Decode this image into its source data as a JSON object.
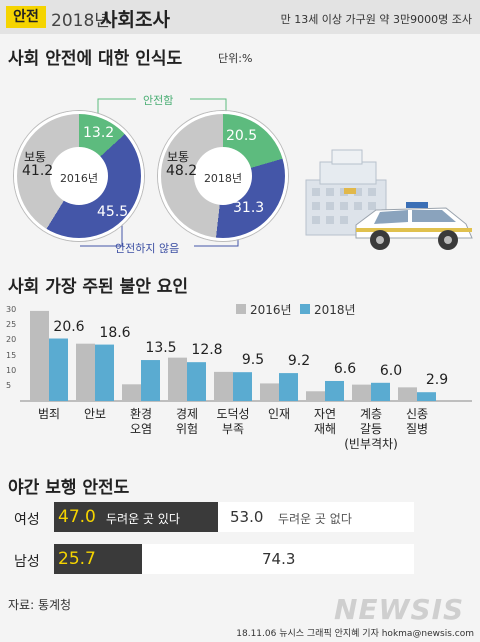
{
  "header": {
    "tag": "안전",
    "year": "2018년",
    "title": "사회조사",
    "note": "만 13세 이상 가구원 약 3만9000명 조사"
  },
  "perception": {
    "title": "사회 안전에 대한 인식도",
    "unit": "단위:%",
    "label_safe": "안전함",
    "label_unsafe": "안전하지 않음",
    "pies": [
      {
        "year": "2016년",
        "normal_label": "보통",
        "normal": "41.2",
        "safe": "13.2",
        "unsafe": "45.5"
      },
      {
        "year": "2018년",
        "normal_label": "보통",
        "normal": "48.2",
        "safe": "20.5",
        "unsafe": "31.3"
      }
    ]
  },
  "anxiety": {
    "title": "사회 가장 주된 불안 요인",
    "legend": [
      "2016년",
      "2018년"
    ],
    "ticks": [
      "30",
      "25",
      "20",
      "15",
      "10",
      "5"
    ]
  },
  "night_walk": {
    "title": "야간 보행 안전도",
    "female": {
      "label": "여성",
      "unsafe": "47.0",
      "unsafe_text": "두려운 곳 있다",
      "safe": "53.0",
      "safe_text": "두려운 곳 없다"
    },
    "male": {
      "label": "남성",
      "unsafe": "25.7",
      "safe": "74.3"
    }
  },
  "source": "자료: 통계청",
  "credit": "18.11.06 뉴시스 그래픽 안지혜 기자 hokma@newsis.com",
  "logo": "NEWSIS",
  "colors": {
    "safe": "#5dbb7e",
    "unsafe": "#4456a8",
    "normal": "#c8c8c8",
    "y2016": "#bdbdbd",
    "y2018": "#5aabd1",
    "accent": "#f5d400"
  },
  "chart_data": [
    {
      "type": "pie",
      "title": "2016년",
      "categories": [
        "안전함",
        "안전하지 않음",
        "보통"
      ],
      "values": [
        13.2,
        45.5,
        41.2
      ]
    },
    {
      "type": "pie",
      "title": "2018년",
      "categories": [
        "안전함",
        "안전하지 않음",
        "보통"
      ],
      "values": [
        20.5,
        31.3,
        48.2
      ]
    },
    {
      "type": "bar",
      "title": "사회 가장 주된 불안 요인",
      "categories": [
        "범죄",
        "안보",
        "환경\n오염",
        "경제\n위험",
        "도덕성\n부족",
        "인재",
        "자연\n재해",
        "계층\n갈등\n(빈부격차)",
        "신종\n질병"
      ],
      "series": [
        {
          "name": "2016년",
          "values": [
            29.7,
            18.9,
            5.5,
            14.3,
            9.6,
            5.8,
            3.2,
            5.4,
            4.5
          ]
        },
        {
          "name": "2018년",
          "values": [
            20.6,
            18.6,
            13.5,
            12.8,
            9.5,
            9.2,
            6.6,
            6.0,
            2.9
          ]
        }
      ],
      "ylim": [
        0,
        30
      ],
      "grid": false,
      "legend": "top-right"
    }
  ]
}
